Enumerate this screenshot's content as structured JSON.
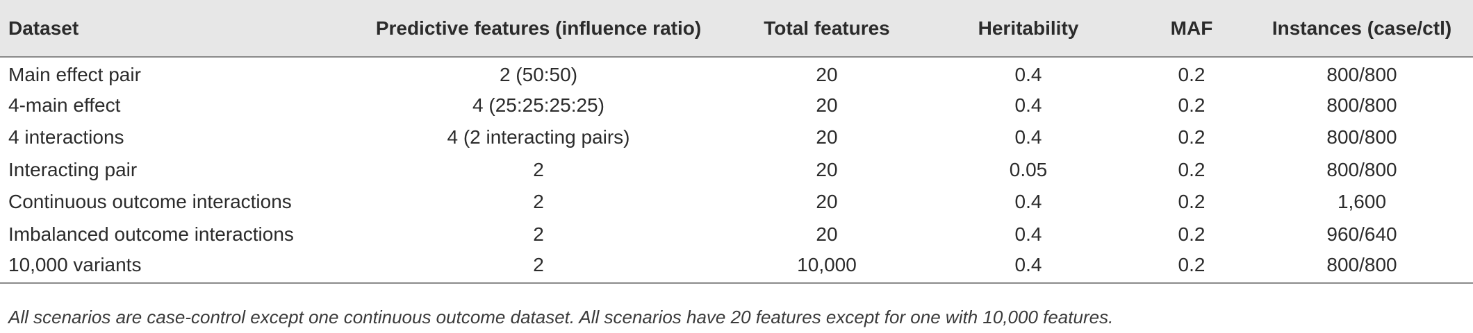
{
  "table": {
    "headers": [
      "Dataset",
      "Predictive features (influence ratio)",
      "Total features",
      "Heritability",
      "MAF",
      "Instances (case/ctl)"
    ],
    "rows": [
      [
        "Main effect pair",
        "2 (50:50)",
        "20",
        "0.4",
        "0.2",
        "800/800"
      ],
      [
        "4-main effect",
        "4 (25:25:25:25)",
        "20",
        "0.4",
        "0.2",
        "800/800"
      ],
      [
        "4 interactions",
        "4 (2 interacting pairs)",
        "20",
        "0.4",
        "0.2",
        "800/800"
      ],
      [
        "Interacting pair",
        "2",
        "20",
        "0.05",
        "0.2",
        "800/800"
      ],
      [
        "Continuous outcome interactions",
        "2",
        "20",
        "0.4",
        "0.2",
        "1,600"
      ],
      [
        "Imbalanced outcome interactions",
        "2",
        "20",
        "0.4",
        "0.2",
        "960/640"
      ],
      [
        "10,000 variants",
        "2",
        "10,000",
        "0.4",
        "0.2",
        "800/800"
      ]
    ]
  },
  "footnote": "All scenarios are case-control except one continuous outcome dataset. All scenarios have 20 features except for one with 10,000 features.",
  "colors": {
    "header_bg": "#e7e7e7",
    "rule": "#8a8a8a",
    "text": "#2b2b2b"
  }
}
